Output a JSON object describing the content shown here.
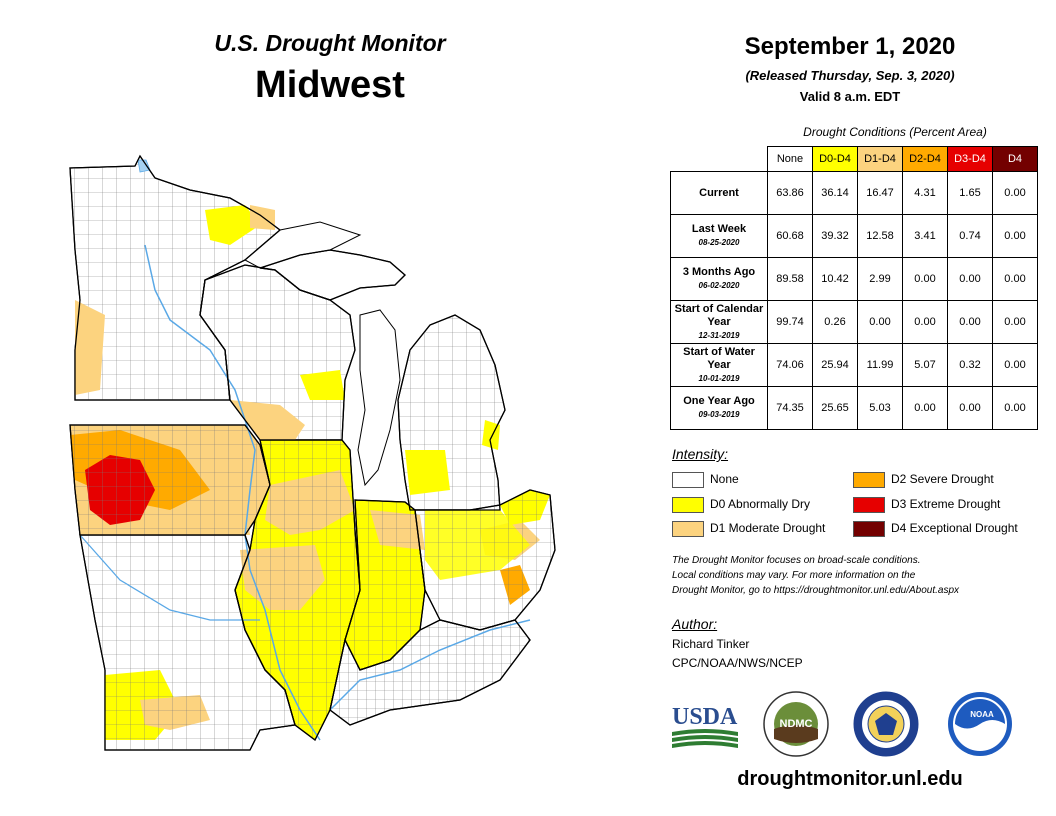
{
  "header": {
    "title_top": "U.S. Drought Monitor",
    "title_region": "Midwest",
    "date": "September 1, 2020",
    "released": "(Released Thursday, Sep. 3, 2020)",
    "valid": "Valid 8 a.m. EDT"
  },
  "table": {
    "caption": "Drought Conditions (Percent Area)",
    "columns": [
      "None",
      "D0-D4",
      "D1-D4",
      "D2-D4",
      "D3-D4",
      "D4"
    ],
    "column_colors": [
      "#ffffff",
      "#ffff00",
      "#fcd37f",
      "#ffaa00",
      "#e60000",
      "#730000"
    ],
    "rows": [
      {
        "label": "Current",
        "date": "",
        "values": [
          "63.86",
          "36.14",
          "16.47",
          "4.31",
          "1.65",
          "0.00"
        ]
      },
      {
        "label": "Last Week",
        "date": "08-25-2020",
        "values": [
          "60.68",
          "39.32",
          "12.58",
          "3.41",
          "0.74",
          "0.00"
        ]
      },
      {
        "label": "3 Months Ago",
        "date": "06-02-2020",
        "values": [
          "89.58",
          "10.42",
          "2.99",
          "0.00",
          "0.00",
          "0.00"
        ]
      },
      {
        "label": "Start of Calendar Year",
        "date": "12-31-2019",
        "values": [
          "99.74",
          "0.26",
          "0.00",
          "0.00",
          "0.00",
          "0.00"
        ]
      },
      {
        "label": "Start of Water Year",
        "date": "10-01-2019",
        "values": [
          "74.06",
          "25.94",
          "11.99",
          "5.07",
          "0.32",
          "0.00"
        ]
      },
      {
        "label": "One Year Ago",
        "date": "09-03-2019",
        "values": [
          "74.35",
          "25.65",
          "5.03",
          "0.00",
          "0.00",
          "0.00"
        ]
      }
    ]
  },
  "legend": {
    "title": "Intensity:",
    "items": [
      {
        "label": "None",
        "color": "#ffffff"
      },
      {
        "label": "D0 Abnormally Dry",
        "color": "#ffff00"
      },
      {
        "label": "D1 Moderate Drought",
        "color": "#fcd37f"
      },
      {
        "label": "D2 Severe Drought",
        "color": "#ffaa00"
      },
      {
        "label": "D3 Extreme Drought",
        "color": "#e60000"
      },
      {
        "label": "D4 Exceptional Drought",
        "color": "#730000"
      }
    ]
  },
  "note": {
    "line1": "The Drought Monitor focuses on broad-scale conditions.",
    "line2": "Local conditions may vary. For more information on the",
    "line3": "Drought Monitor, go to https://droughtmonitor.unl.edu/About.aspx"
  },
  "author": {
    "title": "Author:",
    "name": "Richard Tinker",
    "org": "CPC/NOAA/NWS/NCEP"
  },
  "logos": {
    "usda": "USDA",
    "ndmc": "NDMC",
    "noaa": "NOAA"
  },
  "footer": {
    "url": "droughtmonitor.unl.edu"
  },
  "map": {
    "colors": {
      "water": "#a6d2f2",
      "state_border": "#000000",
      "county_border": "#7a7a7a",
      "none": "#ffffff",
      "d0": "#ffff00",
      "d1": "#fcd37f",
      "d2": "#ffaa00",
      "d3": "#e60000"
    }
  }
}
